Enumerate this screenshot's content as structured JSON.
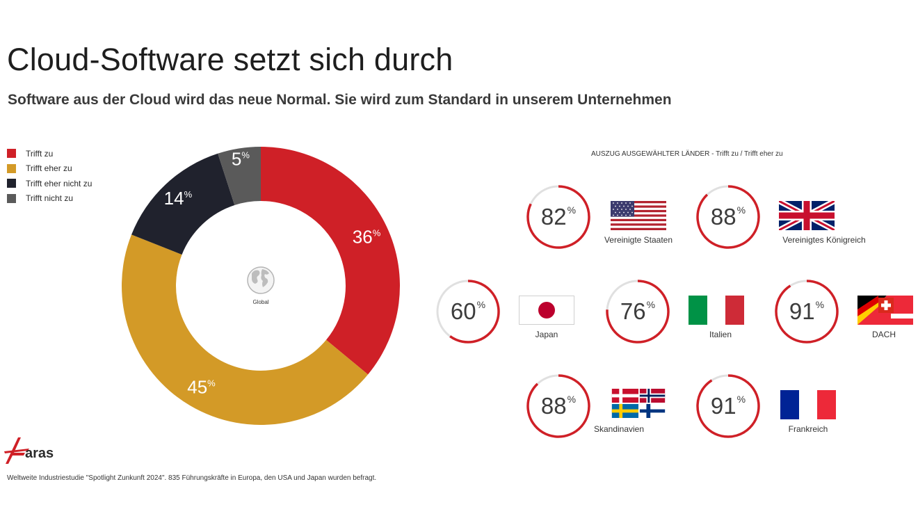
{
  "title": "Cloud-Software setzt sich durch",
  "subtitle": "Software aus der Cloud wird das neue Normal. Sie wird zum Standard in unserem Unternehmen",
  "chart_data": {
    "type": "pie",
    "center_label": "Global",
    "categories": [
      "Trifft zu",
      "Trifft eher zu",
      "Trifft eher nicht zu",
      "Trifft nicht zu"
    ],
    "values": [
      36,
      45,
      14,
      5
    ],
    "colors": [
      "#cf2027",
      "#d39a27",
      "#20222d",
      "#5a5a5a"
    ],
    "legend_position": "top-left"
  },
  "countries_header": "AUSZUG AUSGEWÄHLTER LÄNDER - Trifft zu / Trifft eher zu",
  "countries": [
    {
      "name": "Vereinigte Staaten",
      "value": 82,
      "flag": "us-flag-icon"
    },
    {
      "name": "Vereinigtes Königreich",
      "value": 88,
      "flag": "uk-flag-icon"
    },
    {
      "name": "Japan",
      "value": 60,
      "flag": "japan-flag-icon"
    },
    {
      "name": "Italien",
      "value": 76,
      "flag": "italy-flag-icon"
    },
    {
      "name": "DACH",
      "value": 91,
      "flag": "dach-flags-icon"
    },
    {
      "name": "Skandinavien",
      "value": 88,
      "flag": "scandinavia-flags-icon"
    },
    {
      "name": "Frankreich",
      "value": 91,
      "flag": "france-flag-icon"
    }
  ],
  "percent_sign": "%",
  "ring_color": "#cf2027",
  "ring_track_color": "#e0e0e0",
  "logo_text": "aras",
  "footnote": "Weltweite Industriestudie \"Spotlight Zunkunft 2024\". 835 Führungskräfte in Europa, den USA und Japan wurden befragt."
}
